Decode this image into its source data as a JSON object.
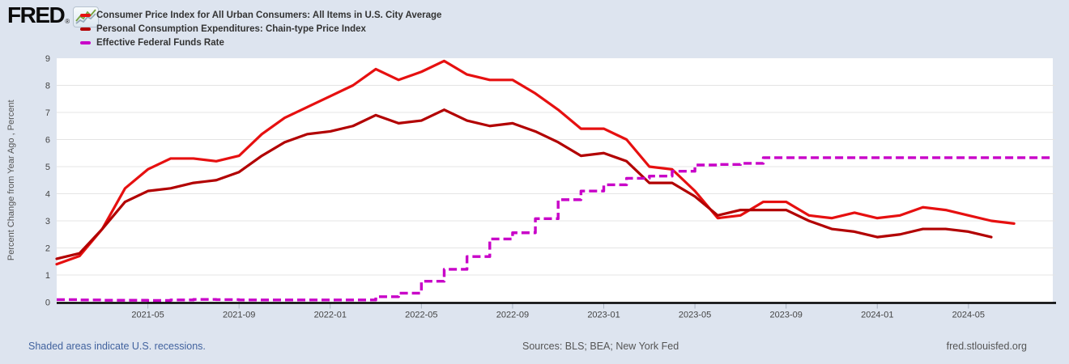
{
  "header": {
    "logo_text": "FRED",
    "registered_mark": "®",
    "legend": [
      {
        "key": "cpi",
        "label": "Consumer Price Index for All Urban Consumers: All Items in U.S. City Average",
        "color": "#e61010"
      },
      {
        "key": "pce",
        "label": "Personal Consumption Expenditures: Chain-type Price Index",
        "color": "#b20000"
      },
      {
        "key": "effr",
        "label": "Effective Federal Funds Rate",
        "color": "#c800c8"
      }
    ]
  },
  "footer": {
    "recession_note": "Shaded areas indicate U.S. recessions.",
    "sources": "Sources: BLS; BEA; New York Fed",
    "site": "fred.stlouisfed.org"
  },
  "chart_data": {
    "type": "line",
    "title": "",
    "xlabel": "",
    "ylabel": "Percent Change from Year Ago , Percent",
    "ylim": [
      0,
      9
    ],
    "y_ticks": [
      0,
      1,
      2,
      3,
      4,
      5,
      6,
      7,
      8,
      9
    ],
    "grid": "horizontal",
    "legend_position": "top-left",
    "x_start_month": "2021-01",
    "x_months_span": 43.7,
    "x_ticks": [
      {
        "label": "2021-05",
        "m": 4
      },
      {
        "label": "2021-09",
        "m": 8
      },
      {
        "label": "2022-01",
        "m": 12
      },
      {
        "label": "2022-05",
        "m": 16
      },
      {
        "label": "2022-09",
        "m": 20
      },
      {
        "label": "2023-01",
        "m": 24
      },
      {
        "label": "2023-05",
        "m": 28
      },
      {
        "label": "2023-09",
        "m": 32
      },
      {
        "label": "2024-01",
        "m": 36
      },
      {
        "label": "2024-05",
        "m": 40
      }
    ],
    "series": [
      {
        "key": "cpi",
        "name": "Consumer Price Index for All Urban Consumers: All Items in U.S. City Average",
        "color": "#e61010",
        "line_type": "linear",
        "dash": "solid",
        "start": "2021-01",
        "values": [
          1.4,
          1.7,
          2.7,
          4.2,
          4.9,
          5.3,
          5.3,
          5.2,
          5.4,
          6.2,
          6.8,
          7.2,
          7.6,
          8.0,
          8.6,
          8.2,
          8.5,
          8.9,
          8.4,
          8.2,
          8.2,
          7.7,
          7.1,
          6.4,
          6.4,
          6.0,
          5.0,
          4.9,
          4.1,
          3.1,
          3.2,
          3.7,
          3.7,
          3.2,
          3.1,
          3.3,
          3.1,
          3.2,
          3.5,
          3.4,
          3.2,
          3.0,
          2.9
        ]
      },
      {
        "key": "pce",
        "name": "Personal Consumption Expenditures: Chain-type Price Index",
        "color": "#b20000",
        "line_type": "linear",
        "dash": "solid",
        "start": "2021-01",
        "values": [
          1.6,
          1.8,
          2.7,
          3.7,
          4.1,
          4.2,
          4.4,
          4.5,
          4.8,
          5.4,
          5.9,
          6.2,
          6.3,
          6.5,
          6.9,
          6.6,
          6.7,
          7.1,
          6.7,
          6.5,
          6.6,
          6.3,
          5.9,
          5.4,
          5.5,
          5.2,
          4.4,
          4.4,
          3.9,
          3.2,
          3.4,
          3.4,
          3.4,
          3.0,
          2.7,
          2.6,
          2.4,
          2.5,
          2.7,
          2.7,
          2.6,
          2.4
        ]
      },
      {
        "key": "effr",
        "name": "Effective Federal Funds Rate",
        "color": "#c800c8",
        "line_type": "step",
        "dash": "dashed",
        "start": "2021-01",
        "values": [
          0.09,
          0.08,
          0.07,
          0.07,
          0.06,
          0.08,
          0.1,
          0.09,
          0.08,
          0.08,
          0.08,
          0.08,
          0.08,
          0.08,
          0.2,
          0.33,
          0.77,
          1.21,
          1.68,
          2.33,
          2.56,
          3.08,
          3.78,
          4.1,
          4.33,
          4.57,
          4.65,
          4.83,
          5.06,
          5.08,
          5.12,
          5.33,
          5.33,
          5.33,
          5.33,
          5.33,
          5.33,
          5.33,
          5.33,
          5.33,
          5.33,
          5.33,
          5.33,
          5.33
        ]
      }
    ]
  }
}
